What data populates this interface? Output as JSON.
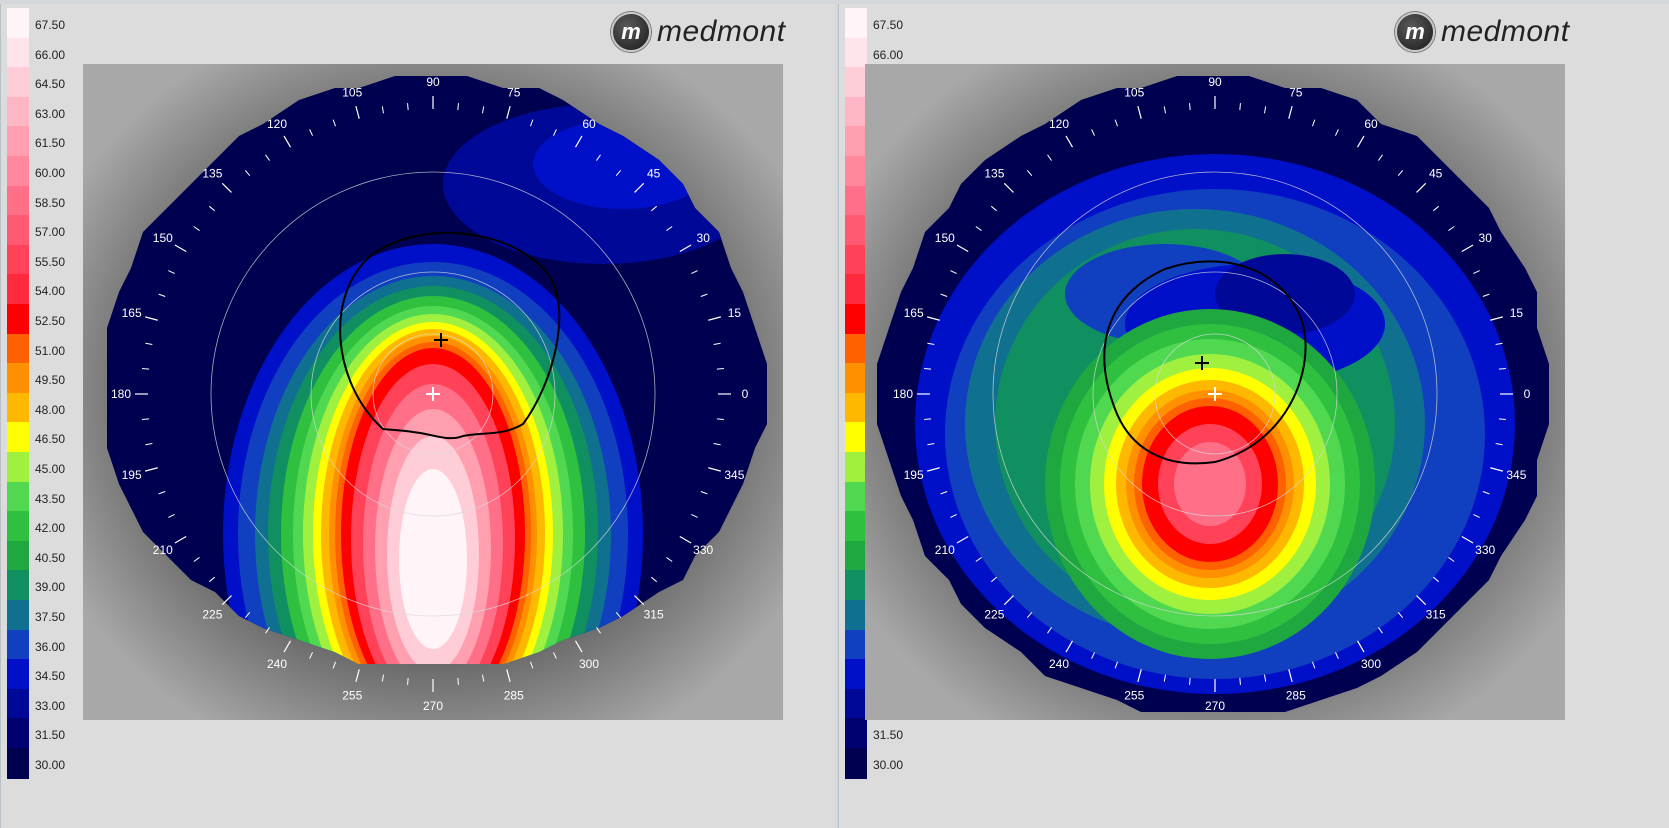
{
  "brand": {
    "name": "medmont"
  },
  "scale": {
    "values": [
      "67.50",
      "66.00",
      "64.50",
      "63.00",
      "61.50",
      "60.00",
      "58.50",
      "57.00",
      "55.50",
      "54.00",
      "52.50",
      "51.00",
      "49.50",
      "48.00",
      "46.50",
      "45.00",
      "43.50",
      "42.00",
      "40.50",
      "39.00",
      "37.50",
      "36.00",
      "34.50",
      "33.00",
      "31.50",
      "30.00"
    ],
    "colors": [
      "#fff4f8",
      "#ffe4ec",
      "#ffcdd8",
      "#ffb6c4",
      "#ff9fb0",
      "#ff889c",
      "#ff7088",
      "#ff5a72",
      "#ff4258",
      "#ff2a3e",
      "#ff0000",
      "#ff6000",
      "#ff9000",
      "#ffb800",
      "#ffff00",
      "#a0f040",
      "#50d850",
      "#30c040",
      "#20a840",
      "#109060",
      "#107090",
      "#1040c0",
      "#0010c8",
      "#000898",
      "#000070",
      "#000050"
    ]
  },
  "angles": {
    "labels": [
      "0",
      "15",
      "30",
      "45",
      "60",
      "75",
      "90",
      "105",
      "120",
      "135",
      "150",
      "165",
      "180",
      "195",
      "210",
      "225",
      "240",
      "255",
      "270",
      "285",
      "300",
      "315",
      "330",
      "345"
    ]
  },
  "maps": {
    "left": {
      "name": "left-eye-topography"
    },
    "right": {
      "name": "right-eye-topography"
    }
  }
}
